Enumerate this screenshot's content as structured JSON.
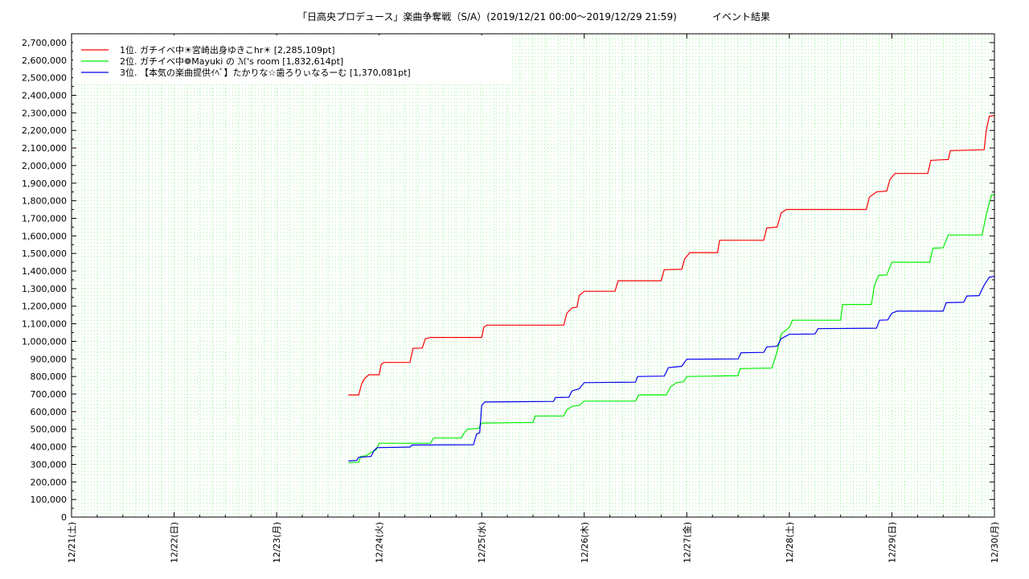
{
  "chart_data": {
    "type": "line",
    "title": "「日高央プロデュース」楽曲争奪戦（S/A）(2019/12/21 00:00～2019/12/29 21:59)",
    "subtitle": "イベント結果",
    "xlabel": "",
    "ylabel": "",
    "x_unit": "days",
    "x_ticks": [
      "12/21(土)",
      "12/22(日)",
      "12/23(月)",
      "12/24(火)",
      "12/25(水)",
      "12/26(木)",
      "12/27(金)",
      "12/28(土)",
      "12/29(日)",
      "12/30(月)"
    ],
    "xlim": [
      0,
      9
    ],
    "ylim": [
      0,
      2750000
    ],
    "y_ticks": [
      0,
      100000,
      200000,
      300000,
      400000,
      500000,
      600000,
      700000,
      800000,
      900000,
      1000000,
      1100000,
      1200000,
      1300000,
      1400000,
      1500000,
      1600000,
      1700000,
      1800000,
      1900000,
      2000000,
      2100000,
      2200000,
      2300000,
      2400000,
      2500000,
      2600000,
      2700000
    ],
    "y_tick_labels": [
      "0",
      "100,000",
      "200,000",
      "300,000",
      "400,000",
      "500,000",
      "600,000",
      "700,000",
      "800,000",
      "900,000",
      "1,000,000",
      "1,100,000",
      "1,200,000",
      "1,300,000",
      "1,400,000",
      "1,500,000",
      "1,600,000",
      "1,700,000",
      "1,800,000",
      "1,900,000",
      "2,000,000",
      "2,100,000",
      "2,200,000",
      "2,300,000",
      "2,400,000",
      "2,500,000",
      "2,600,000",
      "2,700,000"
    ],
    "grid": true,
    "legend_position": "top-left",
    "series": [
      {
        "name": "1位. ガチイベ中☀宮崎出身ゆきこhr☀ [2,285,109pt]",
        "color": "#ff0000",
        "points": [
          [
            2.7,
            695000
          ],
          [
            2.8,
            695000
          ],
          [
            2.83,
            760000
          ],
          [
            2.86,
            790000
          ],
          [
            2.9,
            810000
          ],
          [
            3.0,
            810000
          ],
          [
            3.02,
            870000
          ],
          [
            3.05,
            880000
          ],
          [
            3.3,
            880000
          ],
          [
            3.33,
            960000
          ],
          [
            3.42,
            962000
          ],
          [
            3.45,
            1015000
          ],
          [
            3.5,
            1022000
          ],
          [
            4.0,
            1022000
          ],
          [
            4.02,
            1080000
          ],
          [
            4.05,
            1092000
          ],
          [
            4.8,
            1092000
          ],
          [
            4.83,
            1160000
          ],
          [
            4.88,
            1190000
          ],
          [
            4.93,
            1195000
          ],
          [
            4.95,
            1260000
          ],
          [
            5.0,
            1285000
          ],
          [
            5.3,
            1285000
          ],
          [
            5.33,
            1345000
          ],
          [
            5.75,
            1345000
          ],
          [
            5.78,
            1408000
          ],
          [
            5.95,
            1410000
          ],
          [
            5.98,
            1470000
          ],
          [
            6.03,
            1505000
          ],
          [
            6.3,
            1505000
          ],
          [
            6.32,
            1575000
          ],
          [
            6.75,
            1575000
          ],
          [
            6.78,
            1645000
          ],
          [
            6.88,
            1650000
          ],
          [
            6.92,
            1730000
          ],
          [
            6.97,
            1750000
          ],
          [
            7.75,
            1750000
          ],
          [
            7.78,
            1820000
          ],
          [
            7.85,
            1850000
          ],
          [
            7.95,
            1855000
          ],
          [
            7.98,
            1920000
          ],
          [
            8.03,
            1955000
          ],
          [
            8.35,
            1955000
          ],
          [
            8.38,
            2030000
          ],
          [
            8.55,
            2035000
          ],
          [
            8.57,
            2085000
          ],
          [
            8.9,
            2090000
          ],
          [
            8.92,
            2200000
          ],
          [
            8.95,
            2280000
          ],
          [
            9.0,
            2285109
          ]
        ]
      },
      {
        "name": "2位. ガチイベ中❁Mayuki の ℳ's room [1,832,614pt]",
        "color": "#00ee00",
        "points": [
          [
            2.7,
            310000
          ],
          [
            2.8,
            312000
          ],
          [
            2.82,
            345000
          ],
          [
            2.87,
            348000
          ],
          [
            2.92,
            368000
          ],
          [
            2.97,
            382000
          ],
          [
            3.0,
            420000
          ],
          [
            3.5,
            420000
          ],
          [
            3.53,
            450000
          ],
          [
            3.8,
            450000
          ],
          [
            3.83,
            480000
          ],
          [
            3.86,
            500000
          ],
          [
            3.97,
            505000
          ],
          [
            4.0,
            535000
          ],
          [
            4.5,
            538000
          ],
          [
            4.52,
            575000
          ],
          [
            4.8,
            575000
          ],
          [
            4.83,
            610000
          ],
          [
            4.88,
            630000
          ],
          [
            4.95,
            635000
          ],
          [
            5.0,
            660000
          ],
          [
            5.5,
            660000
          ],
          [
            5.53,
            695000
          ],
          [
            5.8,
            695000
          ],
          [
            5.84,
            740000
          ],
          [
            5.9,
            765000
          ],
          [
            5.97,
            770000
          ],
          [
            6.0,
            800000
          ],
          [
            6.5,
            805000
          ],
          [
            6.52,
            845000
          ],
          [
            6.83,
            848000
          ],
          [
            6.88,
            940000
          ],
          [
            6.92,
            1040000
          ],
          [
            7.0,
            1080000
          ],
          [
            7.03,
            1120000
          ],
          [
            7.5,
            1120000
          ],
          [
            7.52,
            1210000
          ],
          [
            7.8,
            1210000
          ],
          [
            7.83,
            1320000
          ],
          [
            7.87,
            1375000
          ],
          [
            7.95,
            1378000
          ],
          [
            8.0,
            1450000
          ],
          [
            8.37,
            1450000
          ],
          [
            8.4,
            1530000
          ],
          [
            8.5,
            1532000
          ],
          [
            8.55,
            1605000
          ],
          [
            8.88,
            1605000
          ],
          [
            8.92,
            1720000
          ],
          [
            8.97,
            1832614
          ],
          [
            9.0,
            1832614
          ]
        ]
      },
      {
        "name": "3位. 【本気の楽曲提供ｲﾍﾞ】たかりな☆歯ろりぃなるーむ [1,370,081pt]",
        "color": "#0000ee",
        "points": [
          [
            2.7,
            320000
          ],
          [
            2.78,
            322000
          ],
          [
            2.8,
            340000
          ],
          [
            2.92,
            345000
          ],
          [
            2.95,
            380000
          ],
          [
            2.98,
            395000
          ],
          [
            3.3,
            398000
          ],
          [
            3.32,
            410000
          ],
          [
            3.92,
            412000
          ],
          [
            3.95,
            472000
          ],
          [
            3.98,
            480000
          ],
          [
            4.0,
            635000
          ],
          [
            4.03,
            655000
          ],
          [
            4.7,
            658000
          ],
          [
            4.72,
            680000
          ],
          [
            4.85,
            682000
          ],
          [
            4.88,
            718000
          ],
          [
            4.95,
            730000
          ],
          [
            5.0,
            765000
          ],
          [
            5.5,
            768000
          ],
          [
            5.52,
            800000
          ],
          [
            5.78,
            802000
          ],
          [
            5.82,
            850000
          ],
          [
            5.95,
            858000
          ],
          [
            6.0,
            898000
          ],
          [
            6.5,
            900000
          ],
          [
            6.53,
            935000
          ],
          [
            6.75,
            937000
          ],
          [
            6.78,
            968000
          ],
          [
            6.88,
            972000
          ],
          [
            6.92,
            1015000
          ],
          [
            7.0,
            1040000
          ],
          [
            7.25,
            1042000
          ],
          [
            7.28,
            1072000
          ],
          [
            7.85,
            1075000
          ],
          [
            7.88,
            1120000
          ],
          [
            7.96,
            1122000
          ],
          [
            8.0,
            1160000
          ],
          [
            8.05,
            1172000
          ],
          [
            8.5,
            1172000
          ],
          [
            8.53,
            1220000
          ],
          [
            8.7,
            1222000
          ],
          [
            8.73,
            1258000
          ],
          [
            8.85,
            1260000
          ],
          [
            8.9,
            1320000
          ],
          [
            8.95,
            1365000
          ],
          [
            9.0,
            1370081
          ]
        ]
      }
    ]
  }
}
